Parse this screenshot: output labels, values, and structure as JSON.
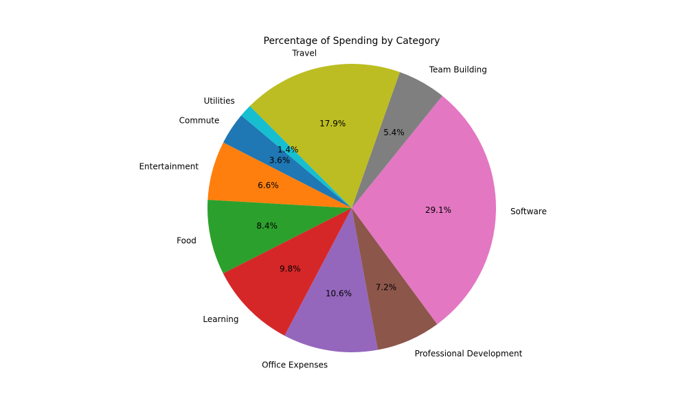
{
  "chart_data": {
    "type": "pie",
    "title": "Percentage of Spending by Category",
    "start_angle_deg": 140,
    "direction": "counterclockwise",
    "slices": [
      {
        "label": "Commute",
        "value": 3.6,
        "pct_label": "3.6%",
        "color": "#1f77b4"
      },
      {
        "label": "Entertainment",
        "value": 6.6,
        "pct_label": "6.6%",
        "color": "#ff7f0e"
      },
      {
        "label": "Food",
        "value": 8.4,
        "pct_label": "8.4%",
        "color": "#2ca02c"
      },
      {
        "label": "Learning",
        "value": 9.8,
        "pct_label": "9.8%",
        "color": "#d62728"
      },
      {
        "label": "Office Expenses",
        "value": 10.6,
        "pct_label": "10.6%",
        "color": "#9467bd"
      },
      {
        "label": "Professional Development",
        "value": 7.2,
        "pct_label": "7.2%",
        "color": "#8c564b"
      },
      {
        "label": "Software",
        "value": 29.1,
        "pct_label": "29.1%",
        "color": "#e377c2"
      },
      {
        "label": "Team Building",
        "value": 5.4,
        "pct_label": "5.4%",
        "color": "#7f7f7f"
      },
      {
        "label": "Travel",
        "value": 17.9,
        "pct_label": "17.9%",
        "color": "#bcbd22"
      },
      {
        "label": "Utilities",
        "value": 1.4,
        "pct_label": "1.4%",
        "color": "#17becf"
      }
    ]
  }
}
